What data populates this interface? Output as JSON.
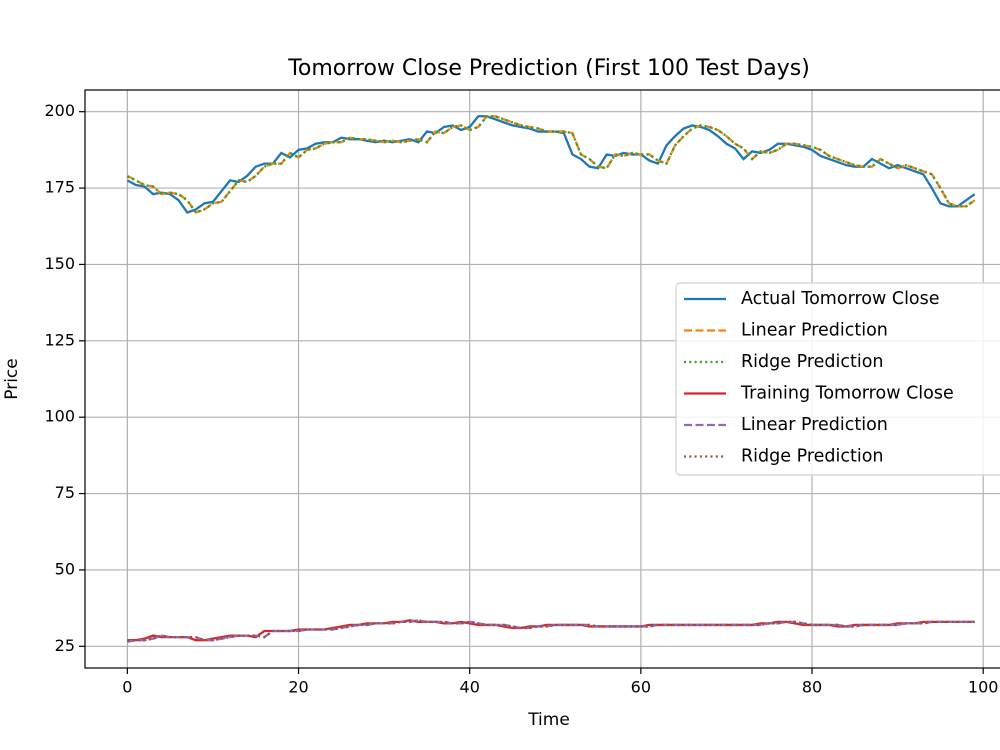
{
  "chart_data": {
    "type": "line",
    "title": "Tomorrow Close Prediction (First 100 Test Days)",
    "x_label": "Time",
    "y_label": "Price",
    "x": [
      0,
      1,
      2,
      3,
      4,
      5,
      6,
      7,
      8,
      9,
      10,
      11,
      12,
      13,
      14,
      15,
      16,
      17,
      18,
      19,
      20,
      21,
      22,
      23,
      24,
      25,
      26,
      27,
      28,
      29,
      30,
      31,
      32,
      33,
      34,
      35,
      36,
      37,
      38,
      39,
      40,
      41,
      42,
      43,
      44,
      45,
      46,
      47,
      48,
      49,
      50,
      51,
      52,
      53,
      54,
      55,
      56,
      57,
      58,
      59,
      60,
      61,
      62,
      63,
      64,
      65,
      66,
      67,
      68,
      69,
      70,
      71,
      72,
      73,
      74,
      75,
      76,
      77,
      78,
      79,
      80,
      81,
      82,
      83,
      84,
      85,
      86,
      87,
      88,
      89,
      90,
      91,
      92,
      93,
      94,
      95,
      96,
      97,
      98,
      99
    ],
    "series": [
      {
        "name": "Actual Tomorrow Close",
        "color": "#1f77b4",
        "dash": "solid",
        "values": [
          177.5,
          176,
          175.5,
          173,
          173.5,
          173,
          171,
          167,
          168,
          170,
          170.5,
          174,
          177.5,
          177,
          179,
          182,
          183,
          183,
          186.5,
          185,
          187.5,
          188,
          189.5,
          190,
          190,
          191.5,
          191,
          191,
          190.5,
          190,
          190.5,
          190,
          190.5,
          191,
          190,
          193.5,
          193,
          195,
          195.5,
          194,
          195,
          198.5,
          198.5,
          197.5,
          196.5,
          195.5,
          195,
          194.5,
          193.5,
          193.5,
          193.5,
          193,
          186,
          184.5,
          182,
          181.5,
          186,
          185.5,
          186.5,
          186,
          186,
          184,
          183,
          189,
          192,
          194.5,
          195.5,
          195,
          194,
          192,
          189.5,
          188,
          184.5,
          187,
          186.5,
          187.5,
          189.5,
          189.5,
          189,
          188.5,
          187.5,
          185.5,
          184.5,
          183.5,
          182.5,
          182,
          182,
          184.5,
          183,
          181.5,
          182.5,
          181.5,
          180.5,
          179.5,
          175,
          170,
          169,
          169,
          171,
          173
        ]
      },
      {
        "name": "Linear Prediction",
        "color": "#ff7f0e",
        "dash": "dashed",
        "values": [
          179,
          177.5,
          176,
          175.5,
          173,
          173.5,
          173,
          171,
          167,
          168,
          170,
          170.5,
          174,
          177.5,
          177,
          179,
          182,
          183,
          183,
          186.5,
          185,
          187.5,
          188,
          189.5,
          190,
          190,
          191.5,
          191,
          191,
          190.5,
          190,
          190.5,
          190,
          190.5,
          191,
          190,
          193.5,
          193,
          195,
          195.5,
          194,
          195,
          198.5,
          198.5,
          197.5,
          196.5,
          195.5,
          195,
          194.5,
          193.5,
          193.5,
          193.5,
          193,
          186,
          184.5,
          182,
          181.5,
          186,
          185.5,
          186.5,
          186,
          186,
          184,
          183,
          189,
          192,
          194.5,
          195.5,
          195,
          194,
          192,
          189.5,
          188,
          184.5,
          187,
          186.5,
          187.5,
          189.5,
          189.5,
          189,
          188.5,
          187.5,
          185.5,
          184.5,
          183.5,
          182.5,
          182,
          182,
          184.5,
          183,
          181.5,
          182.5,
          181.5,
          180.5,
          179.5,
          175,
          170,
          169,
          169,
          171
        ]
      },
      {
        "name": "Ridge Prediction",
        "color": "#2ca02c",
        "dash": "dotted",
        "values": [
          178.8,
          177.5,
          176,
          175.5,
          173,
          173.5,
          173,
          171,
          167,
          168,
          170,
          170.5,
          174,
          177.5,
          177,
          179,
          182,
          183,
          183,
          186.5,
          185,
          187.5,
          188,
          189.5,
          190,
          190,
          191.5,
          191,
          191,
          190.5,
          190,
          190.5,
          190,
          190.5,
          191,
          190,
          193.5,
          193,
          195,
          195.5,
          194,
          195,
          198.5,
          198.5,
          197.5,
          196.5,
          195.5,
          195,
          194.5,
          193.5,
          193.5,
          193.5,
          193,
          186,
          184.5,
          182,
          181.5,
          186,
          185.5,
          186.5,
          186,
          186,
          184,
          183,
          189,
          192,
          194.5,
          195.5,
          195,
          194,
          192,
          189.5,
          188,
          184.5,
          187,
          186.5,
          187.5,
          189.5,
          189.5,
          189,
          188.5,
          187.5,
          185.5,
          184.5,
          183.5,
          182.5,
          182,
          182,
          184.5,
          183,
          181.5,
          182.5,
          181.5,
          180.5,
          179.5,
          175,
          170,
          169,
          169,
          171
        ]
      },
      {
        "name": "Training Tomorrow Close",
        "color": "#d62728",
        "dash": "solid",
        "values": [
          27,
          27,
          27.5,
          28.5,
          28,
          28,
          28,
          28,
          27,
          27,
          27.5,
          28,
          28.5,
          28.5,
          28.5,
          28,
          30,
          30,
          30,
          30,
          30.5,
          30.5,
          30.5,
          30.5,
          31,
          31.5,
          32,
          32,
          32.5,
          32.5,
          32.5,
          33,
          33,
          33.5,
          33,
          33,
          33,
          32.5,
          32.5,
          33,
          32.5,
          32,
          32,
          32,
          31.5,
          31,
          31,
          31.5,
          31.5,
          32,
          32,
          32,
          32,
          32,
          31.5,
          31.5,
          31.5,
          31.5,
          31.5,
          31.5,
          31.5,
          32,
          32,
          32,
          32,
          32,
          32,
          32,
          32,
          32,
          32,
          32,
          32,
          32,
          32.5,
          32.5,
          33,
          33,
          32.5,
          32,
          32,
          32,
          32,
          31.5,
          31.5,
          32,
          32,
          32,
          32,
          32,
          32.5,
          32.5,
          32.5,
          33,
          33,
          33,
          33,
          33,
          33,
          33
        ]
      },
      {
        "name": "Linear Prediction",
        "color": "#9467bd",
        "dash": "dashed",
        "values": [
          26.5,
          27,
          27,
          27.5,
          28.5,
          28,
          28,
          28,
          28,
          27,
          27,
          27.5,
          28,
          28.5,
          28.5,
          28.5,
          28,
          30,
          30,
          30,
          30,
          30.5,
          30.5,
          30.5,
          30.5,
          31,
          31.5,
          32,
          32,
          32.5,
          32.5,
          32.5,
          33,
          33,
          33.5,
          33,
          33,
          33,
          32.5,
          32.5,
          33,
          32.5,
          32,
          32,
          32,
          31.5,
          31,
          31,
          31.5,
          31.5,
          32,
          32,
          32,
          32,
          32,
          31.5,
          31.5,
          31.5,
          31.5,
          31.5,
          31.5,
          31.5,
          32,
          32,
          32,
          32,
          32,
          32,
          32,
          32,
          32,
          32,
          32,
          32,
          32,
          32.5,
          32.5,
          33,
          33,
          32.5,
          32,
          32,
          32,
          32,
          31.5,
          31.5,
          32,
          32,
          32,
          32,
          32,
          32.5,
          32.5,
          32.5,
          33,
          33,
          33,
          33,
          33,
          33
        ]
      },
      {
        "name": "Ridge Prediction",
        "color": "#8c564b",
        "dash": "dotted",
        "values": [
          26.8,
          27,
          27,
          27.5,
          28.5,
          28,
          28,
          28,
          28,
          27,
          27,
          27.5,
          28,
          28.5,
          28.5,
          28.5,
          28,
          30,
          30,
          30,
          30,
          30.5,
          30.5,
          30.5,
          30.5,
          31,
          31.5,
          32,
          32,
          32.5,
          32.5,
          32.5,
          33,
          33,
          33.5,
          33,
          33,
          33,
          32.5,
          32.5,
          33,
          32.5,
          32,
          32,
          32,
          31.5,
          31,
          31,
          31.5,
          31.5,
          32,
          32,
          32,
          32,
          32,
          31.5,
          31.5,
          31.5,
          31.5,
          31.5,
          31.5,
          31.5,
          32,
          32,
          32,
          32,
          32,
          32,
          32,
          32,
          32,
          32,
          32,
          32,
          32,
          32.5,
          32.5,
          33,
          33,
          32.5,
          32,
          32,
          32,
          32,
          31.5,
          31.5,
          32,
          32,
          32,
          32,
          32,
          32.5,
          32.5,
          32.5,
          33,
          33,
          33,
          33,
          33,
          33
        ]
      }
    ],
    "xlim": [
      -4.95,
      103.95
    ],
    "xticks": [
      0,
      20,
      40,
      60,
      80,
      100
    ],
    "ylim": [
      17.9,
      207.1
    ],
    "yticks": [
      25,
      50,
      75,
      100,
      125,
      150,
      175,
      200
    ],
    "grid": true,
    "legend": "center right"
  }
}
